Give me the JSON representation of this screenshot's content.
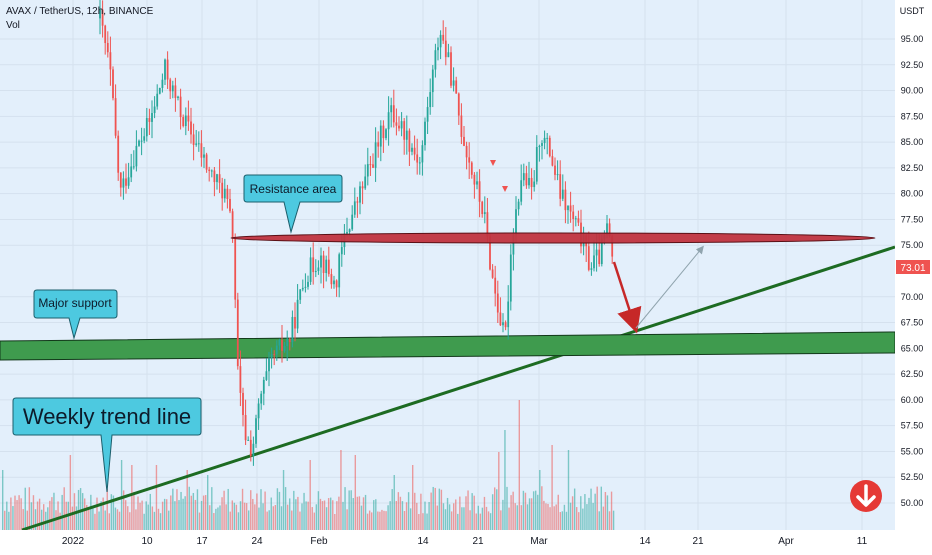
{
  "header": {
    "symbol_line": "AVAX / TetherUS, 12h, BINANCE",
    "volume_label": "Vol"
  },
  "price_axis": {
    "currency": "USDT",
    "ticks": [
      "95.00",
      "92.50",
      "90.00",
      "87.50",
      "85.00",
      "82.50",
      "80.00",
      "77.50",
      "75.00",
      "70.00",
      "67.50",
      "65.00",
      "62.50",
      "60.00",
      "57.50",
      "55.00",
      "52.50",
      "50.00"
    ],
    "current_price": "73.01",
    "current_price_color": "#ef5350"
  },
  "time_axis": {
    "labels": [
      "2022",
      "10",
      "17",
      "24",
      "Feb",
      "14",
      "21",
      "Mar",
      "14",
      "21",
      "Apr",
      "11"
    ]
  },
  "annotations": {
    "resistance_label": "Resistance area",
    "support_label": "Major support",
    "trendline_label": "Weekly trend line"
  },
  "colors": {
    "background": "#e3effb",
    "up_candle": "#26a69a",
    "down_candle": "#ef5350",
    "resistance_zone": "#c0333f",
    "support_zone": "#3f9b4e",
    "trend_line": "#1d6b22",
    "callout_fill": "#4dc9e0",
    "sell_badge": "#e53935"
  },
  "chart_data": {
    "type": "candlestick",
    "title": "AVAX / TetherUS, 12h, BINANCE",
    "ylabel": "USDT",
    "yrange": [
      48,
      97
    ],
    "ohlc_series": [
      {
        "segment": "early January 2022",
        "high": 97,
        "low": 79,
        "note": "range 80-97, declining"
      },
      {
        "segment": "January 20-21 drop",
        "from": 75.5,
        "to": 58
      },
      {
        "segment": "January 24 low",
        "low": 55
      },
      {
        "segment": "late January recovery",
        "from": 60,
        "to": 77
      },
      {
        "segment": "early February rally",
        "high": 97
      },
      {
        "segment": "February 21-24 dip",
        "low": 65.5
      },
      {
        "segment": "March rebound",
        "high": 87
      },
      {
        "segment": "current",
        "close": 73.01
      }
    ],
    "resistance_area": {
      "y_from": 75.2,
      "y_to": 76.2
    },
    "support_zone": {
      "y_from": 64.5,
      "y_to": 66.5
    },
    "trend_line": {
      "from": {
        "date": "2022-01-01",
        "price": 46.5
      },
      "to": {
        "date": "2022-04-15",
        "price": 75
      }
    },
    "projection": {
      "target": 66.5
    }
  }
}
